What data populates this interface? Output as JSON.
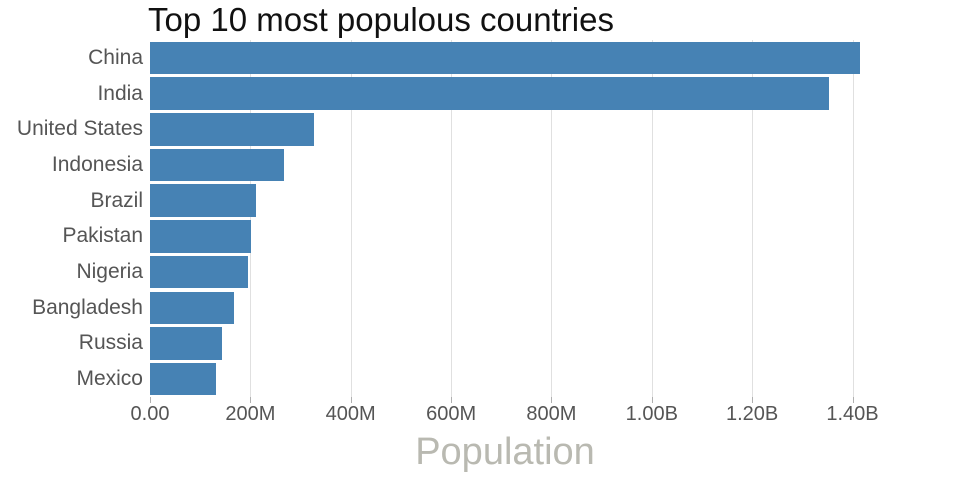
{
  "chart_data": {
    "type": "bar",
    "orientation": "horizontal",
    "title": "Top 10 most populous countries",
    "xlabel": "Population",
    "ylabel": "",
    "categories": [
      "China",
      "India",
      "United States",
      "Indonesia",
      "Brazil",
      "Pakistan",
      "Nigeria",
      "Bangladesh",
      "Russia",
      "Mexico"
    ],
    "values": [
      1415045928,
      1354051854,
      326766748,
      266794980,
      210867954,
      200813818,
      195875237,
      166368149,
      143964709,
      130759074
    ],
    "xlim": [
      0,
      1415045928
    ],
    "x_ticks": [
      {
        "value": 0,
        "label": "0.00"
      },
      {
        "value": 200000000,
        "label": "200M"
      },
      {
        "value": 400000000,
        "label": "400M"
      },
      {
        "value": 600000000,
        "label": "600M"
      },
      {
        "value": 800000000,
        "label": "800M"
      },
      {
        "value": 1000000000,
        "label": "1.00B"
      },
      {
        "value": 1200000000,
        "label": "1.20B"
      },
      {
        "value": 1400000000,
        "label": "1.40B"
      }
    ],
    "grid": "vertical-only",
    "legend": "none",
    "colors": {
      "bar": "#4682b4",
      "title": "#111111",
      "tick_label": "#555555",
      "grid": "#e0e0e0",
      "tick": "#b0b0b0",
      "axis_title": "#b9b9b1"
    }
  }
}
